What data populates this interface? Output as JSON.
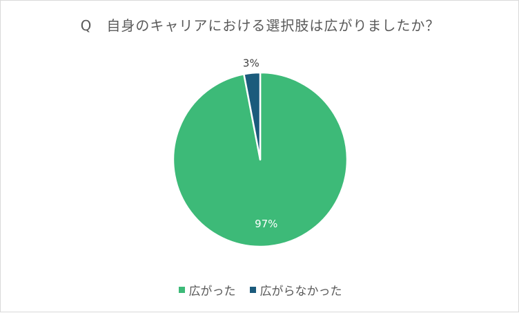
{
  "chart_data": {
    "type": "pie",
    "title": "Q　自身のキャリアにおける選択肢は広がりましたか？",
    "slices": [
      {
        "label": "広がった",
        "value": 97,
        "display": "97%",
        "color": "#3dba78"
      },
      {
        "label": "広がらなかった",
        "value": 3,
        "display": "3%",
        "color": "#1b5b7c"
      }
    ],
    "legend_position": "bottom"
  }
}
